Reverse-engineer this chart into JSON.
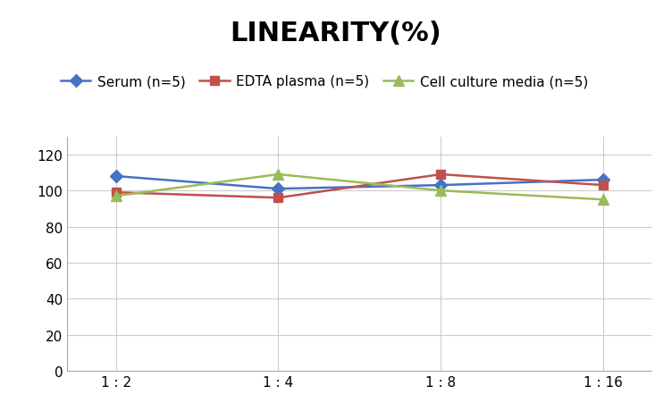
{
  "title": "LINEARITY(%)",
  "x_labels": [
    "1 : 2",
    "1 : 4",
    "1 : 8",
    "1 : 16"
  ],
  "x_positions": [
    0,
    1,
    2,
    3
  ],
  "series": [
    {
      "name": "Serum (n=5)",
      "values": [
        108,
        101,
        103,
        106
      ],
      "color": "#4472C4",
      "marker": "D",
      "marker_size": 7
    },
    {
      "name": "EDTA plasma (n=5)",
      "values": [
        99,
        96,
        109,
        103
      ],
      "color": "#C0504D",
      "marker": "s",
      "marker_size": 7
    },
    {
      "name": "Cell culture media (n=5)",
      "values": [
        97,
        109,
        100,
        95
      ],
      "color": "#9BBB59",
      "marker": "^",
      "marker_size": 8
    }
  ],
  "ylim": [
    0,
    130
  ],
  "yticks": [
    0,
    20,
    40,
    60,
    80,
    100,
    120
  ],
  "grid_color": "#CCCCCC",
  "background_color": "#FFFFFF",
  "title_fontsize": 22,
  "legend_fontsize": 11,
  "tick_fontsize": 11
}
